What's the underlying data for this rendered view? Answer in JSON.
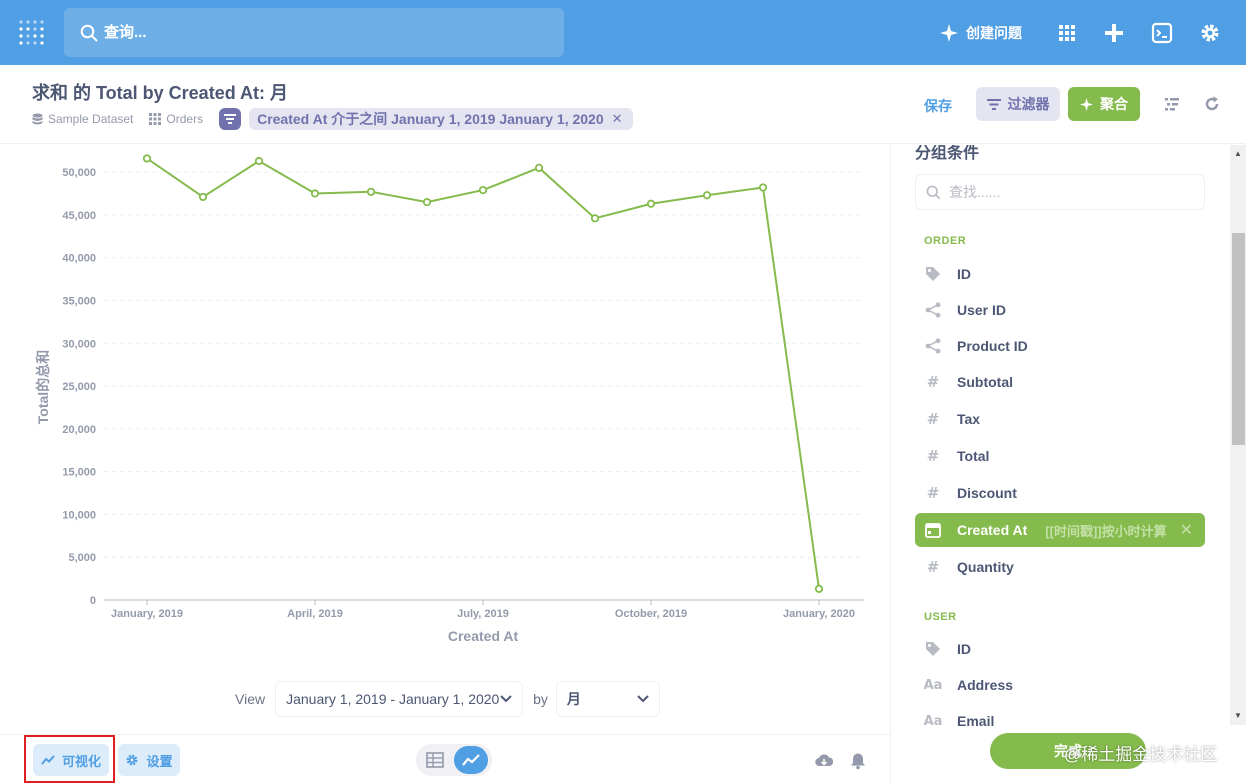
{
  "topnav": {
    "search_placeholder": "查询...",
    "new_question": "创建问题",
    "colors": {
      "background": "#509ee3"
    },
    "icons": [
      "metabase-logo-icon",
      "search-icon",
      "sparkle-icon",
      "grid-apps-icon",
      "plus-icon",
      "sql-editor-icon",
      "gear-icon"
    ]
  },
  "header": {
    "title": "求和 的 Total by Created At: 月",
    "dataset": "Sample Dataset",
    "table": "Orders",
    "filter_pill": "Created At 介于之间 January 1, 2019 January 1, 2020",
    "save": "保存",
    "filter_button": "过滤器",
    "summarize_button": "聚合"
  },
  "chart_data": {
    "type": "line",
    "xlabel": "Created At",
    "ylabel": "Total的总和",
    "x": [
      "2019-01",
      "2019-02",
      "2019-03",
      "2019-04",
      "2019-05",
      "2019-06",
      "2019-07",
      "2019-08",
      "2019-09",
      "2019-10",
      "2019-11",
      "2019-12",
      "2020-01"
    ],
    "x_tick_labels": [
      "January, 2019",
      "April, 2019",
      "July, 2019",
      "October, 2019",
      "January, 2020"
    ],
    "y_tick_labels": [
      "0",
      "5,000",
      "10,000",
      "15,000",
      "20,000",
      "25,000",
      "30,000",
      "35,000",
      "40,000",
      "45,000",
      "50,000"
    ],
    "series": [
      {
        "values": [
          51600,
          47100,
          51300,
          47500,
          47700,
          46500,
          47900,
          50500,
          44600,
          46300,
          47300,
          48200,
          1300
        ]
      }
    ],
    "ylim": [
      0,
      52000
    ],
    "grid": true,
    "color": "#84bb4c"
  },
  "view": {
    "label": "View",
    "range": "January 1, 2019 - January 1, 2020",
    "by_label": "by",
    "unit": "月"
  },
  "footer": {
    "visualization": "可视化",
    "settings": "设置"
  },
  "sidebar": {
    "title": "分组条件",
    "search_placeholder": "查找......",
    "sections": [
      {
        "name": "ORDER",
        "items": [
          {
            "label": "ID",
            "icon": "tag-icon"
          },
          {
            "label": "User ID",
            "icon": "connections-icon"
          },
          {
            "label": "Product ID",
            "icon": "connections-icon"
          },
          {
            "label": "Subtotal",
            "icon": "number-icon"
          },
          {
            "label": "Tax",
            "icon": "number-icon"
          },
          {
            "label": "Total",
            "icon": "number-icon"
          },
          {
            "label": "Discount",
            "icon": "number-icon"
          },
          {
            "label": "Created At",
            "icon": "calendar-icon",
            "active": true,
            "bucket": "[[时间戳]]按小时计算"
          },
          {
            "label": "Quantity",
            "icon": "number-icon"
          }
        ]
      },
      {
        "name": "USER",
        "items": [
          {
            "label": "ID",
            "icon": "tag-icon"
          },
          {
            "label": "Address",
            "icon": "string-icon"
          },
          {
            "label": "Email",
            "icon": "string-icon"
          }
        ]
      }
    ],
    "done": "完成",
    "watermark": "@稀土掘金技术社区"
  }
}
